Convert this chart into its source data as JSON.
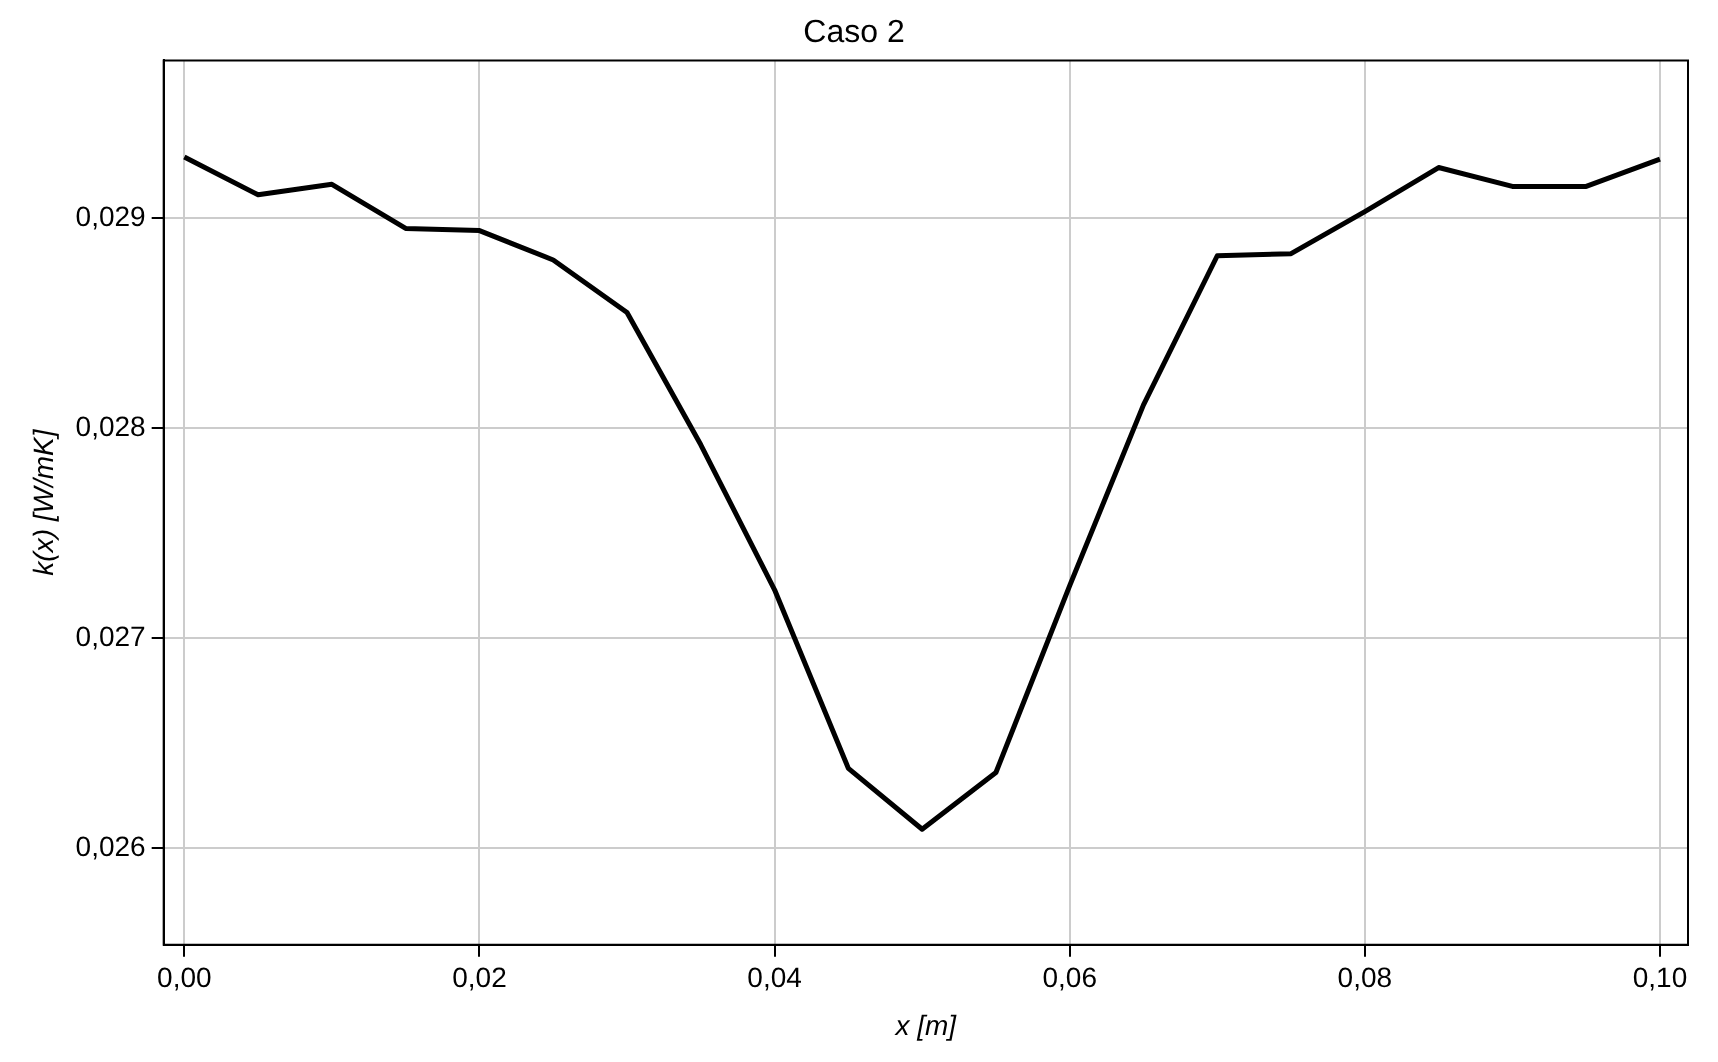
{
  "chart_data": {
    "type": "line",
    "title": "Caso 2",
    "xlabel": "x [m]",
    "ylabel": "k(x) [W/mK]",
    "x": [
      0,
      0.005,
      0.01,
      0.015,
      0.02,
      0.025,
      0.03,
      0.035,
      0.04,
      0.045,
      0.05,
      0.055,
      0.06,
      0.065,
      0.07,
      0.075,
      0.08,
      0.085,
      0.09,
      0.095,
      0.1
    ],
    "series": [
      {
        "color": "#000000",
        "values": [
          0.02929,
          0.02911,
          0.02916,
          0.02895,
          0.02894,
          0.0288,
          0.02855,
          0.02792,
          0.02723,
          0.02638,
          0.02609,
          0.02636,
          0.02725,
          0.02811,
          0.02882,
          0.02883,
          0.02903,
          0.02924,
          0.02915,
          0.02915,
          0.02928
        ]
      }
    ],
    "xlim": [
      -0.0014,
      0.1019
    ],
    "ylim": [
      0.02554,
      0.02975
    ],
    "xticks": [
      {
        "value": 0,
        "label": "0,00"
      },
      {
        "value": 0.02,
        "label": "0,02"
      },
      {
        "value": 0.04,
        "label": "0,04"
      },
      {
        "value": 0.06,
        "label": "0,06"
      },
      {
        "value": 0.08,
        "label": "0,08"
      },
      {
        "value": 0.1,
        "label": "0,10"
      }
    ],
    "yticks": [
      {
        "value": 0.026,
        "label": "0,026"
      },
      {
        "value": 0.027,
        "label": "0,027"
      },
      {
        "value": 0.028,
        "label": "0,028"
      },
      {
        "value": 0.029,
        "label": "0,029"
      }
    ],
    "grid": true,
    "legend": false,
    "marker": "none",
    "line_style": "solid"
  }
}
